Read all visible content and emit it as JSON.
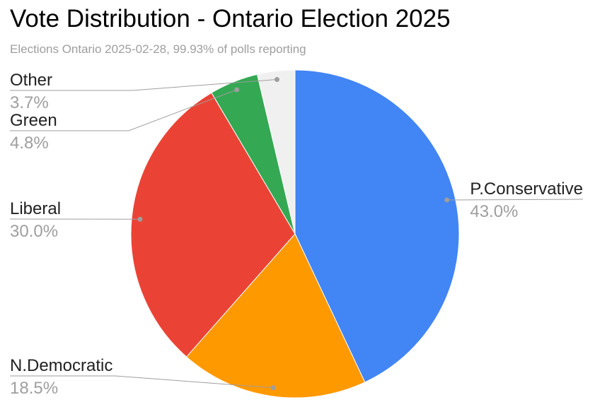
{
  "header": {
    "title": "Vote Distribution - Ontario Election 2025",
    "subtitle": "Elections Ontario 2025-02-28, 99.93% of polls reporting"
  },
  "colors": {
    "background": "#ffffff",
    "title_text": "#000000",
    "subtitle_text": "#9e9e9e",
    "label_text": "#212121",
    "percent_text": "#9e9e9e",
    "leader_line": "#9e9e9e",
    "slice_border": "#ffffff"
  },
  "chart_data": {
    "type": "pie",
    "title": "Vote Distribution - Ontario Election 2025",
    "subtitle": "Elections Ontario 2025-02-28, 99.93% of polls reporting",
    "start_angle_deg": 0,
    "direction": "clockwise",
    "legend_position": "labeled-callouts",
    "slices": [
      {
        "label": "P.Conservative",
        "value_pct": 43.0,
        "display_pct": "43.0%",
        "color": "#4285f4"
      },
      {
        "label": "N.Democratic",
        "value_pct": 18.5,
        "display_pct": "18.5%",
        "color": "#ff9900"
      },
      {
        "label": "Liberal",
        "value_pct": 30.0,
        "display_pct": "30.0%",
        "color": "#ea4335"
      },
      {
        "label": "Green",
        "value_pct": 4.8,
        "display_pct": "4.8%",
        "color": "#34a853"
      },
      {
        "label": "Other",
        "value_pct": 3.7,
        "display_pct": "3.7%",
        "color": "#f0f0f0"
      }
    ]
  }
}
